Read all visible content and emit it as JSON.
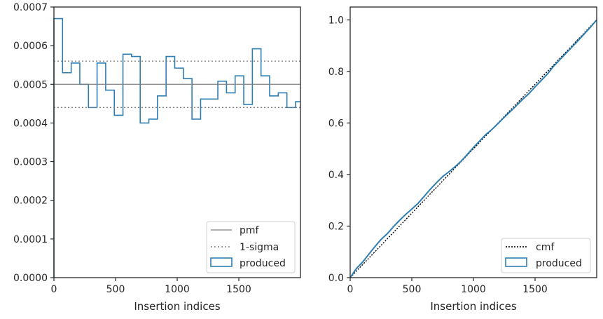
{
  "colors": {
    "produced": "#2f7eb2",
    "pmf": "#808080",
    "sigma": "#808080",
    "cmf": "#000000",
    "axes": "#262626"
  },
  "chart_data": [
    {
      "type": "step",
      "xlabel": "Insertion indices",
      "xlim": [
        0,
        2000
      ],
      "ylim": [
        0,
        0.0007
      ],
      "xticks": [
        0,
        500,
        1000,
        1500
      ],
      "xtick_labels": [
        "0",
        "500",
        "1000",
        "1500"
      ],
      "yticks": [
        0,
        0.0001,
        0.0002,
        0.0003,
        0.0004,
        0.0005,
        0.0006,
        0.0007
      ],
      "ytick_labels": [
        "0.0000",
        "0.0001",
        "0.0002",
        "0.0003",
        "0.0004",
        "0.0005",
        "0.0006",
        "0.0007"
      ],
      "legend": {
        "placement": "lower right",
        "entries": [
          "pmf",
          "1-sigma",
          "produced"
        ]
      },
      "pmf": 0.0005,
      "sigma_lines": [
        0.00044,
        0.00056
      ],
      "bin_edges": [
        0,
        70,
        140,
        210,
        280,
        350,
        420,
        490,
        560,
        630,
        700,
        770,
        840,
        910,
        980,
        1050,
        1120,
        1190,
        1260,
        1330,
        1400,
        1470,
        1540,
        1610,
        1680,
        1750,
        1820,
        1890,
        1960,
        2000
      ],
      "values": [
        0.00067,
        0.00053,
        0.000555,
        0.0005,
        0.00044,
        0.000555,
        0.000485,
        0.00042,
        0.000578,
        0.000572,
        0.0004,
        0.00041,
        0.00047,
        0.000572,
        0.000542,
        0.000515,
        0.00041,
        0.000462,
        0.000462,
        0.000508,
        0.000478,
        0.000522,
        0.000448,
        0.000592,
        0.000522,
        0.00047,
        0.000478,
        0.00044,
        0.000455
      ]
    },
    {
      "type": "line",
      "xlabel": "Insertion indices",
      "xlim": [
        0,
        2000
      ],
      "ylim": [
        0,
        1.05
      ],
      "xticks": [
        0,
        500,
        1000,
        1500
      ],
      "xtick_labels": [
        "0",
        "500",
        "1000",
        "1500"
      ],
      "yticks": [
        0,
        0.2,
        0.4,
        0.6,
        0.8,
        1.0
      ],
      "ytick_labels": [
        "0.0",
        "0.2",
        "0.4",
        "0.6",
        "0.8",
        "1.0"
      ],
      "legend": {
        "placement": "lower right",
        "entries": [
          "cmf",
          "produced"
        ]
      },
      "cmf": {
        "x": [
          0,
          2000
        ],
        "y": [
          0,
          1
        ]
      },
      "produced": {
        "x": [
          0,
          50,
          100,
          150,
          200,
          250,
          300,
          350,
          400,
          450,
          500,
          550,
          600,
          650,
          700,
          750,
          800,
          850,
          900,
          950,
          1000,
          1050,
          1100,
          1150,
          1200,
          1250,
          1300,
          1350,
          1400,
          1450,
          1500,
          1550,
          1600,
          1650,
          1700,
          1750,
          1800,
          1850,
          1900,
          1950,
          2000
        ],
        "y": [
          0,
          0.035,
          0.06,
          0.09,
          0.12,
          0.148,
          0.17,
          0.197,
          0.222,
          0.245,
          0.266,
          0.288,
          0.315,
          0.343,
          0.368,
          0.392,
          0.41,
          0.43,
          0.452,
          0.478,
          0.505,
          0.53,
          0.555,
          0.575,
          0.598,
          0.622,
          0.645,
          0.668,
          0.692,
          0.714,
          0.74,
          0.765,
          0.79,
          0.82,
          0.845,
          0.87,
          0.895,
          0.92,
          0.946,
          0.972,
          1.0
        ]
      }
    }
  ]
}
